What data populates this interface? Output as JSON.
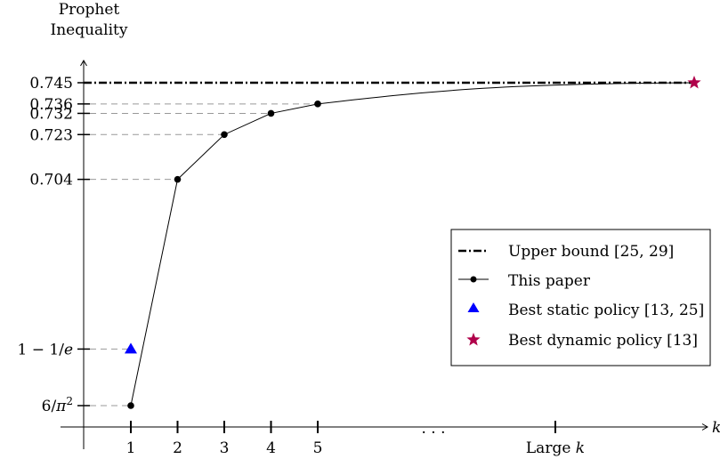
{
  "chart_data": {
    "type": "line",
    "ylabel_lines": [
      "Prophet",
      "Inequality"
    ],
    "xlabel": "k",
    "x_ticks": [
      {
        "label": "1",
        "k": 1
      },
      {
        "label": "2",
        "k": 2
      },
      {
        "label": "3",
        "k": 3
      },
      {
        "label": "4",
        "k": 4
      },
      {
        "label": "5",
        "k": 5
      },
      {
        "label": "Large k",
        "k": 10
      }
    ],
    "x_ellipsis": "· · ·",
    "y_ticks": [
      {
        "label": "0.745",
        "value": 0.745
      },
      {
        "label": "0.736",
        "value": 0.736
      },
      {
        "label": "0.732",
        "value": 0.732
      },
      {
        "label": "0.723",
        "value": 0.723
      },
      {
        "label": "0.704",
        "value": 0.704
      },
      {
        "label": "1 − 1/e",
        "value": 0.632
      },
      {
        "label": "6/π²",
        "value": 0.608
      }
    ],
    "ylim": [
      0.6,
      0.75
    ],
    "xlim": [
      0,
      13.3
    ],
    "series": [
      {
        "name": "Upper bound [25, 29]",
        "style": "dash-dot",
        "color": "#000000",
        "x": [
          0,
          13
        ],
        "y": [
          0.745,
          0.745
        ]
      },
      {
        "name": "This paper",
        "style": "line-dots",
        "color": "#000000",
        "x": [
          1,
          2,
          3,
          4,
          5
        ],
        "y": [
          0.608,
          0.704,
          0.723,
          0.732,
          0.736
        ],
        "tail_to": {
          "x": 13,
          "y": 0.745
        }
      },
      {
        "name": "Best static policy [13, 25]",
        "style": "triangle-marker",
        "color": "#0000ff",
        "x": [
          1
        ],
        "y": [
          0.632
        ]
      },
      {
        "name": "Best dynamic policy [13]",
        "style": "star-marker",
        "color": "#b0004a",
        "x": [
          13
        ],
        "y": [
          0.745
        ]
      }
    ],
    "legend_position": "right"
  }
}
